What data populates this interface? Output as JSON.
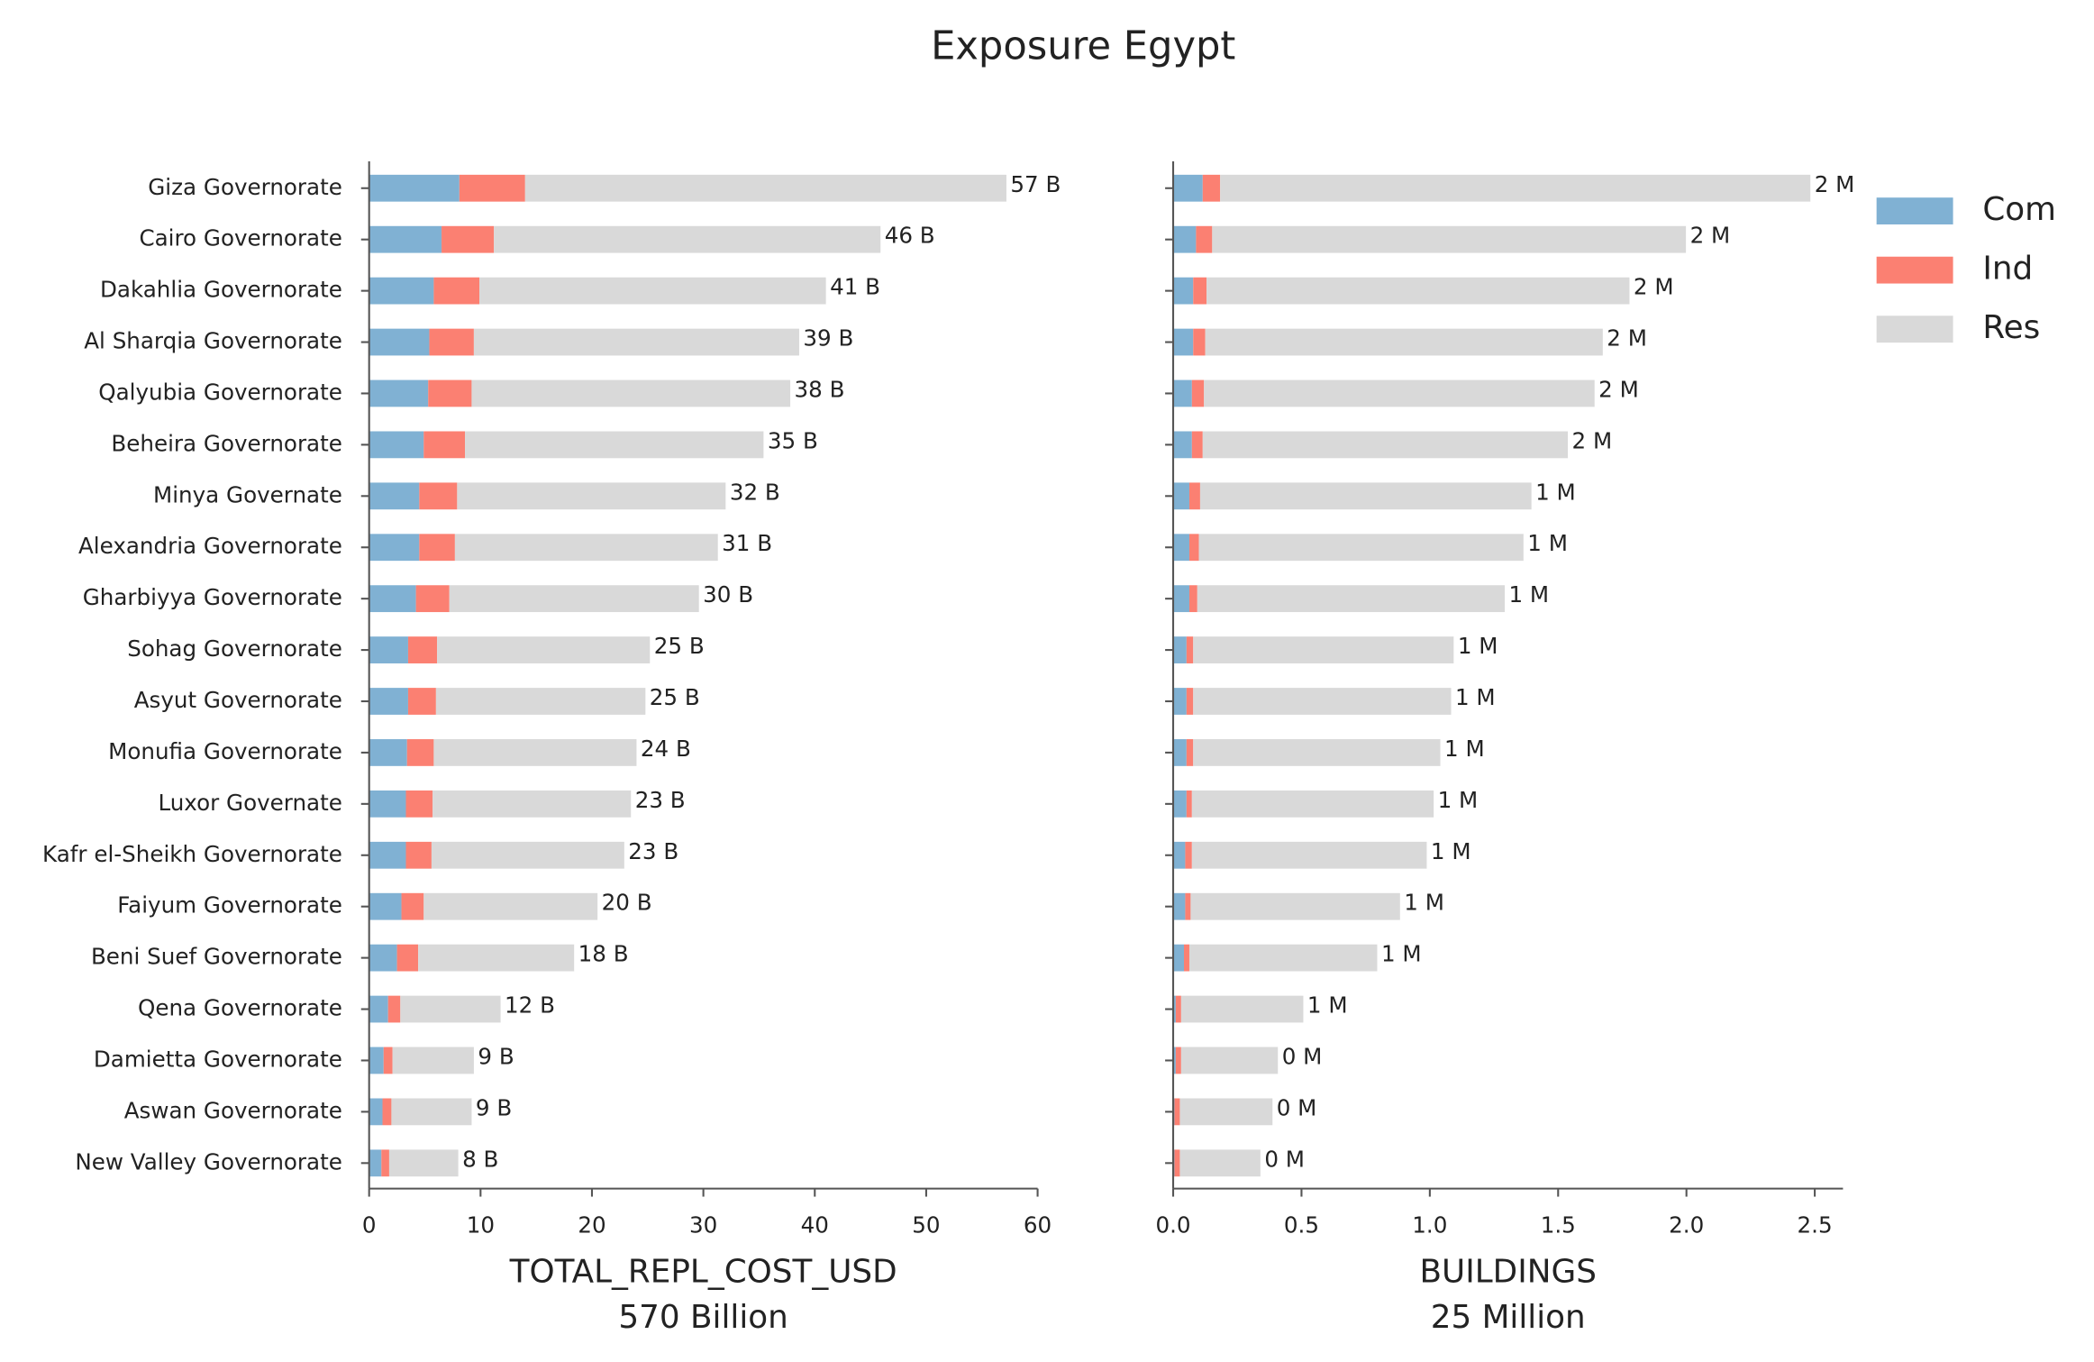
{
  "title": "Exposure Egypt",
  "chart_data": [
    {
      "type": "bar",
      "orientation": "horizontal",
      "stacked": true,
      "categories": [
        "Giza Governorate",
        "Cairo Governorate",
        "Dakahlia Governorate",
        "Al Sharqia Governorate",
        "Qalyubia Governorate",
        "Beheira Governorate",
        "Minya Governate",
        "Alexandria Governorate",
        "Gharbiyya Governorate",
        "Sohag Governorate",
        "Asyut Governorate",
        "Monufia Governorate",
        "Luxor Governate",
        "Kafr el-Sheikh Governorate",
        "Faiyum Governorate",
        "Beni Suef Governorate",
        "Qena Governorate",
        "Damietta Governorate",
        "Aswan Governorate",
        "New Valley Governorate"
      ],
      "series": [
        {
          "name": "Com",
          "color": "#80b1d3",
          "values": [
            8.1,
            6.5,
            5.8,
            5.4,
            5.3,
            4.9,
            4.5,
            4.5,
            4.2,
            3.5,
            3.5,
            3.4,
            3.3,
            3.3,
            2.9,
            2.5,
            1.7,
            1.3,
            1.2,
            1.1
          ]
        },
        {
          "name": "Ind",
          "color": "#fb8072",
          "values": [
            5.9,
            4.7,
            4.1,
            4.0,
            3.9,
            3.7,
            3.4,
            3.2,
            3.0,
            2.6,
            2.5,
            2.4,
            2.4,
            2.3,
            2.0,
            1.9,
            1.1,
            0.8,
            0.8,
            0.7
          ]
        },
        {
          "name": "Res",
          "color": "#d9d9d9",
          "values": [
            43.2,
            34.7,
            31.1,
            29.2,
            28.6,
            26.8,
            24.1,
            23.6,
            22.4,
            19.1,
            18.8,
            18.2,
            17.8,
            17.3,
            15.6,
            14.0,
            9.0,
            7.3,
            7.2,
            6.2
          ]
        }
      ],
      "totals": {
        "values": [
          57.2,
          45.9,
          41.0,
          38.6,
          37.8,
          35.4,
          32.0,
          31.3,
          29.6,
          25.2,
          24.8,
          24.0,
          23.5,
          22.9,
          20.5,
          18.4,
          11.8,
          9.4,
          9.2,
          8.0
        ],
        "value_labels": [
          "57 B",
          "46 B",
          "41 B",
          "39 B",
          "38 B",
          "35 B",
          "32 B",
          "31 B",
          "30 B",
          "25 B",
          "25 B",
          "24 B",
          "23 B",
          "23 B",
          "20 B",
          "18 B",
          "12 B",
          "9 B",
          "9 B",
          "8 B"
        ]
      },
      "xlim": [
        0,
        60
      ],
      "xticks": [
        0,
        10,
        20,
        30,
        40,
        50,
        60
      ],
      "xlabel": [
        "TOTAL_REPL_COST_USD",
        "570 Billion"
      ]
    },
    {
      "type": "bar",
      "orientation": "horizontal",
      "stacked": true,
      "series": [
        {
          "name": "Com",
          "color": "#80b1d3",
          "values": [
            0.115,
            0.089,
            0.078,
            0.078,
            0.073,
            0.073,
            0.063,
            0.063,
            0.063,
            0.052,
            0.052,
            0.052,
            0.052,
            0.047,
            0.047,
            0.042,
            0.01,
            0.01,
            0.005,
            0.005
          ]
        },
        {
          "name": "Ind",
          "color": "#fb8072",
          "values": [
            0.068,
            0.063,
            0.052,
            0.047,
            0.047,
            0.042,
            0.042,
            0.037,
            0.031,
            0.026,
            0.026,
            0.026,
            0.021,
            0.026,
            0.021,
            0.021,
            0.021,
            0.021,
            0.021,
            0.021
          ]
        },
        {
          "name": "Res",
          "color": "#d9d9d9",
          "values": [
            2.3,
            1.846,
            1.648,
            1.549,
            1.522,
            1.423,
            1.291,
            1.265,
            1.198,
            1.015,
            1.005,
            0.963,
            0.942,
            0.915,
            0.816,
            0.732,
            0.476,
            0.377,
            0.361,
            0.314
          ]
        }
      ],
      "totals": {
        "values": [
          2.484,
          1.998,
          1.778,
          1.674,
          1.642,
          1.538,
          1.396,
          1.365,
          1.292,
          1.093,
          1.083,
          1.041,
          1.015,
          0.988,
          0.884,
          0.795,
          0.507,
          0.408,
          0.387,
          0.34
        ],
        "value_labels": [
          "2 M",
          "2 M",
          "2 M",
          "2 M",
          "2 M",
          "2 M",
          "1 M",
          "1 M",
          "1 M",
          "1 M",
          "1 M",
          "1 M",
          "1 M",
          "1 M",
          "1 M",
          "1 M",
          "1 M",
          "0 M",
          "0 M",
          "0 M"
        ]
      },
      "xlim": [
        0,
        2.61
      ],
      "xticks": [
        {
          "value": 0,
          "label": "0.0"
        },
        0.5,
        {
          "value": 1,
          "label": "1.0"
        },
        1.5,
        {
          "value": 2,
          "label": "2.0"
        },
        2.5
      ],
      "xlabel": [
        "BUILDINGS",
        "25 Million"
      ],
      "legend": "outside right"
    }
  ]
}
